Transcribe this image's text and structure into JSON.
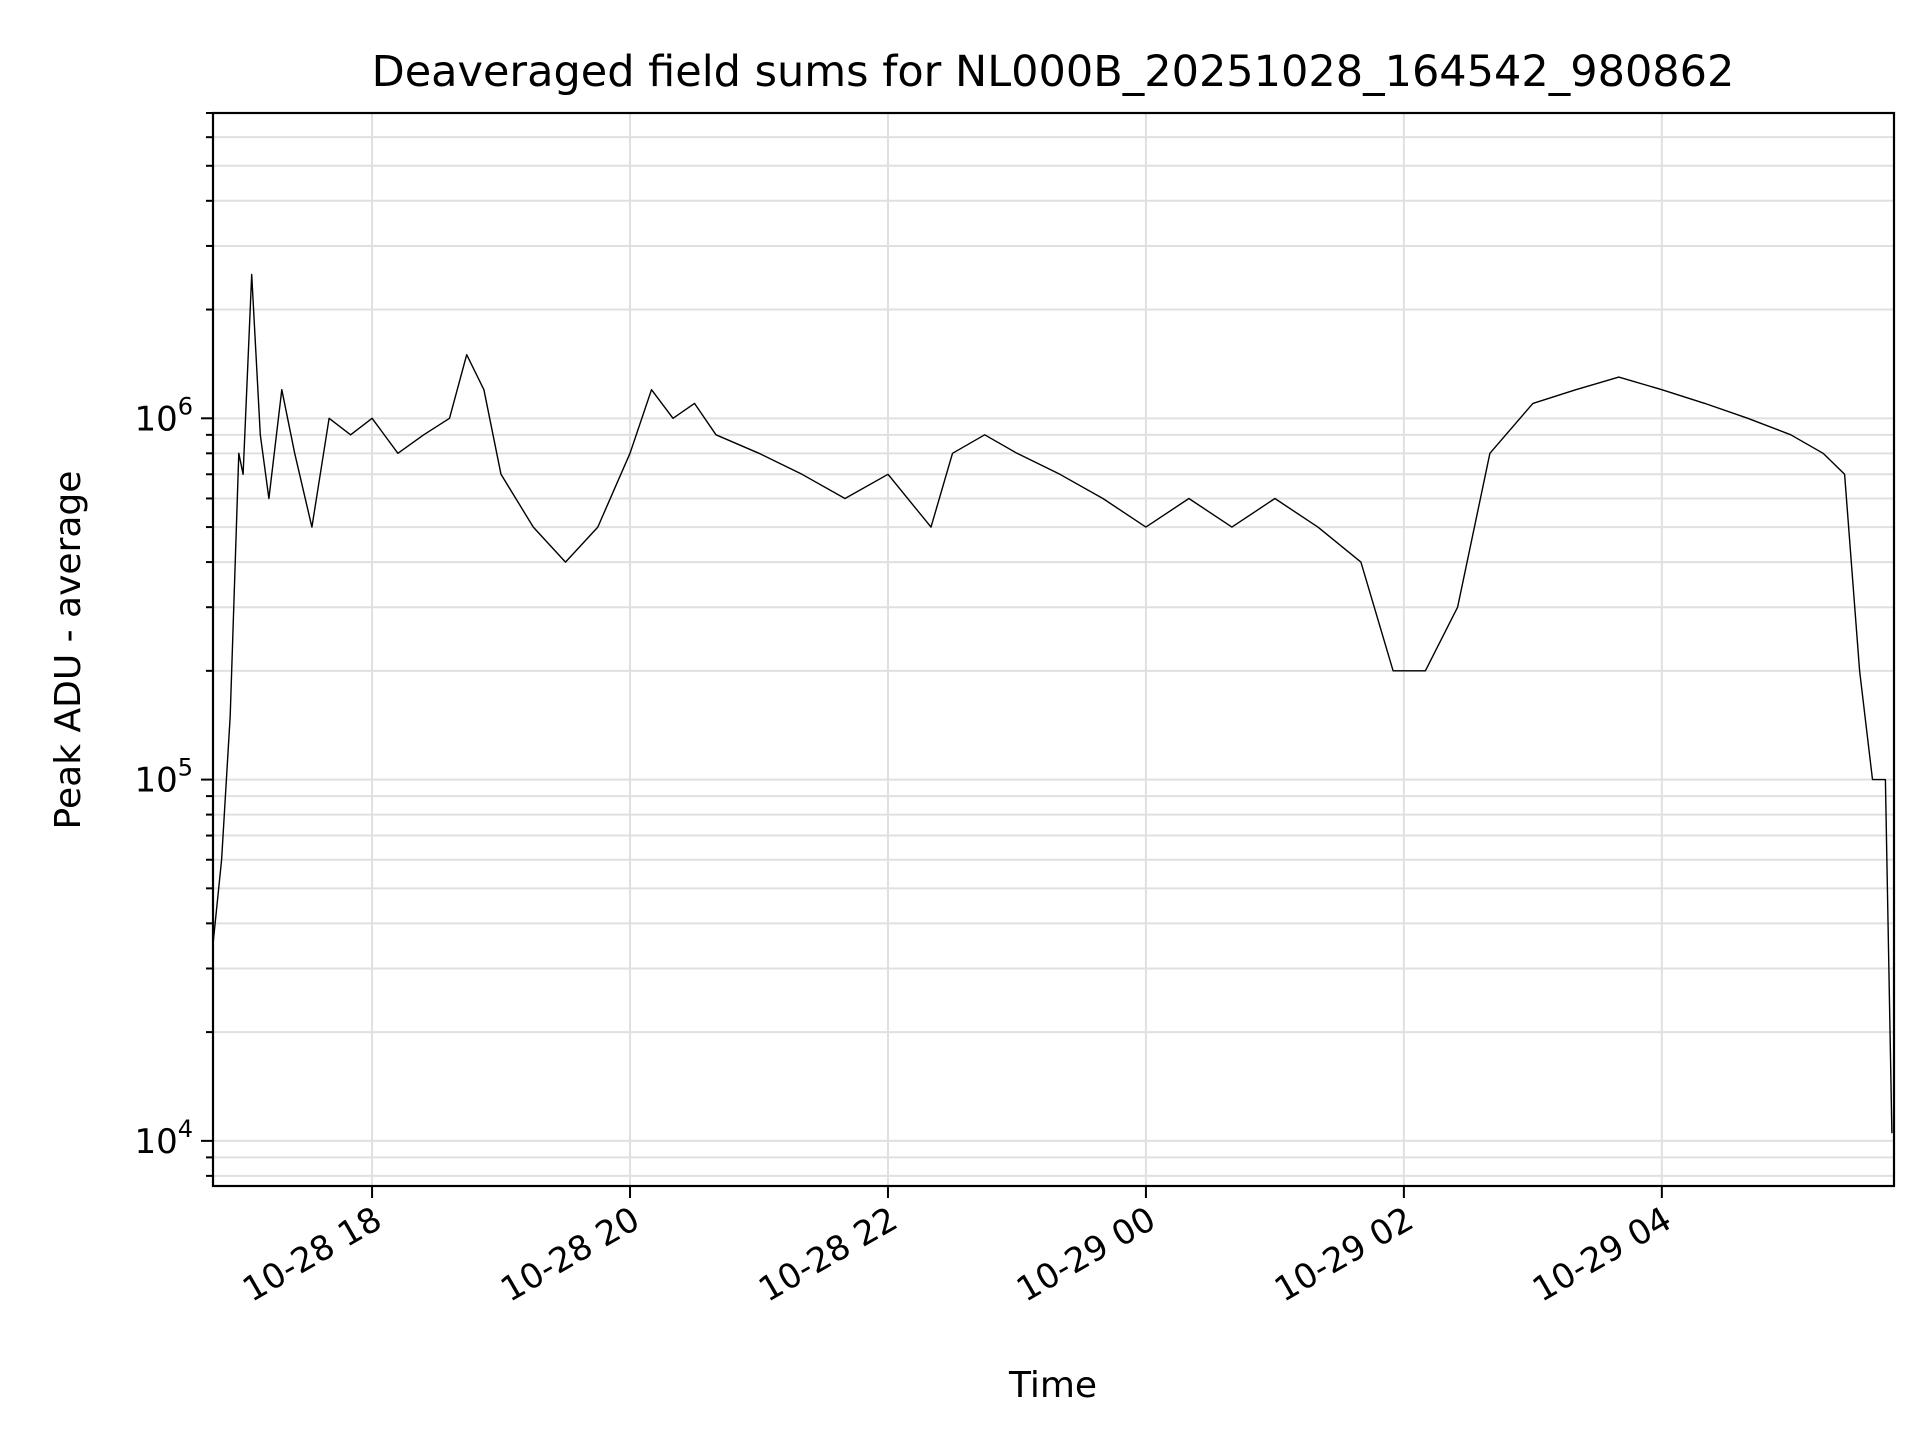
{
  "chart_data": {
    "type": "line",
    "title": "Deaveraged field sums for NL000B_20251028_164542_980862",
    "xlabel": "Time",
    "ylabel": "Peak ADU - average",
    "y_scale": "log",
    "ylim": [
      7500,
      7000000
    ],
    "xlim": [
      "2025-10-28 16:46",
      "2025-10-29 05:48"
    ],
    "grid": true,
    "line_color": "#000000",
    "grid_color": "#e0e0e0",
    "x_ticks": [
      {
        "value": "2025-10-28 18:00",
        "label": "10-28 18"
      },
      {
        "value": "2025-10-28 20:00",
        "label": "10-28 20"
      },
      {
        "value": "2025-10-28 22:00",
        "label": "10-28 22"
      },
      {
        "value": "2025-10-29 00:00",
        "label": "10-29 00"
      },
      {
        "value": "2025-10-29 02:00",
        "label": "10-29 02"
      },
      {
        "value": "2025-10-29 04:00",
        "label": "10-29 04"
      }
    ],
    "y_ticks": [
      {
        "value": 10000,
        "base": "10",
        "exp": "4"
      },
      {
        "value": 100000,
        "base": "10",
        "exp": "5"
      },
      {
        "value": 1000000,
        "base": "10",
        "exp": "6"
      }
    ],
    "series": [
      {
        "x": [
          "2025-10-28 16:46",
          "2025-10-28 16:50",
          "2025-10-28 16:54",
          "2025-10-28 16:58",
          "2025-10-28 17:00",
          "2025-10-28 17:04",
          "2025-10-28 17:08",
          "2025-10-28 17:12",
          "2025-10-28 17:18",
          "2025-10-28 17:24",
          "2025-10-28 17:32",
          "2025-10-28 17:40",
          "2025-10-28 17:50",
          "2025-10-28 18:00",
          "2025-10-28 18:12",
          "2025-10-28 18:24",
          "2025-10-28 18:36",
          "2025-10-28 18:44",
          "2025-10-28 18:52",
          "2025-10-28 19:00",
          "2025-10-28 19:15",
          "2025-10-28 19:30",
          "2025-10-28 19:45",
          "2025-10-28 20:00",
          "2025-10-28 20:10",
          "2025-10-28 20:20",
          "2025-10-28 20:30",
          "2025-10-28 20:40",
          "2025-10-28 21:00",
          "2025-10-28 21:20",
          "2025-10-28 21:40",
          "2025-10-28 22:00",
          "2025-10-28 22:20",
          "2025-10-28 22:30",
          "2025-10-28 22:45",
          "2025-10-28 23:00",
          "2025-10-28 23:20",
          "2025-10-28 23:40",
          "2025-10-29 00:00",
          "2025-10-29 00:20",
          "2025-10-29 00:40",
          "2025-10-29 01:00",
          "2025-10-29 01:20",
          "2025-10-29 01:40",
          "2025-10-29 01:55",
          "2025-10-29 02:10",
          "2025-10-29 02:25",
          "2025-10-29 02:40",
          "2025-10-29 03:00",
          "2025-10-29 03:20",
          "2025-10-29 03:40",
          "2025-10-29 04:00",
          "2025-10-29 04:20",
          "2025-10-29 04:40",
          "2025-10-29 05:00",
          "2025-10-29 05:15",
          "2025-10-29 05:25",
          "2025-10-29 05:32",
          "2025-10-29 05:38",
          "2025-10-29 05:44",
          "2025-10-29 05:47"
        ],
        "y": [
          35000,
          60000,
          150000,
          800000,
          700000,
          2500000,
          900000,
          600000,
          1200000,
          800000,
          500000,
          1000000,
          900000,
          1000000,
          800000,
          900000,
          1000000,
          1500000,
          1200000,
          700000,
          500000,
          400000,
          500000,
          800000,
          1200000,
          1000000,
          1100000,
          900000,
          800000,
          700000,
          600000,
          700000,
          500000,
          800000,
          900000,
          800000,
          700000,
          600000,
          500000,
          600000,
          500000,
          600000,
          500000,
          400000,
          200000,
          200000,
          300000,
          800000,
          1100000,
          1200000,
          1300000,
          1200000,
          1100000,
          1000000,
          900000,
          800000,
          700000,
          200000,
          100000,
          100000,
          10500
        ]
      }
    ]
  }
}
